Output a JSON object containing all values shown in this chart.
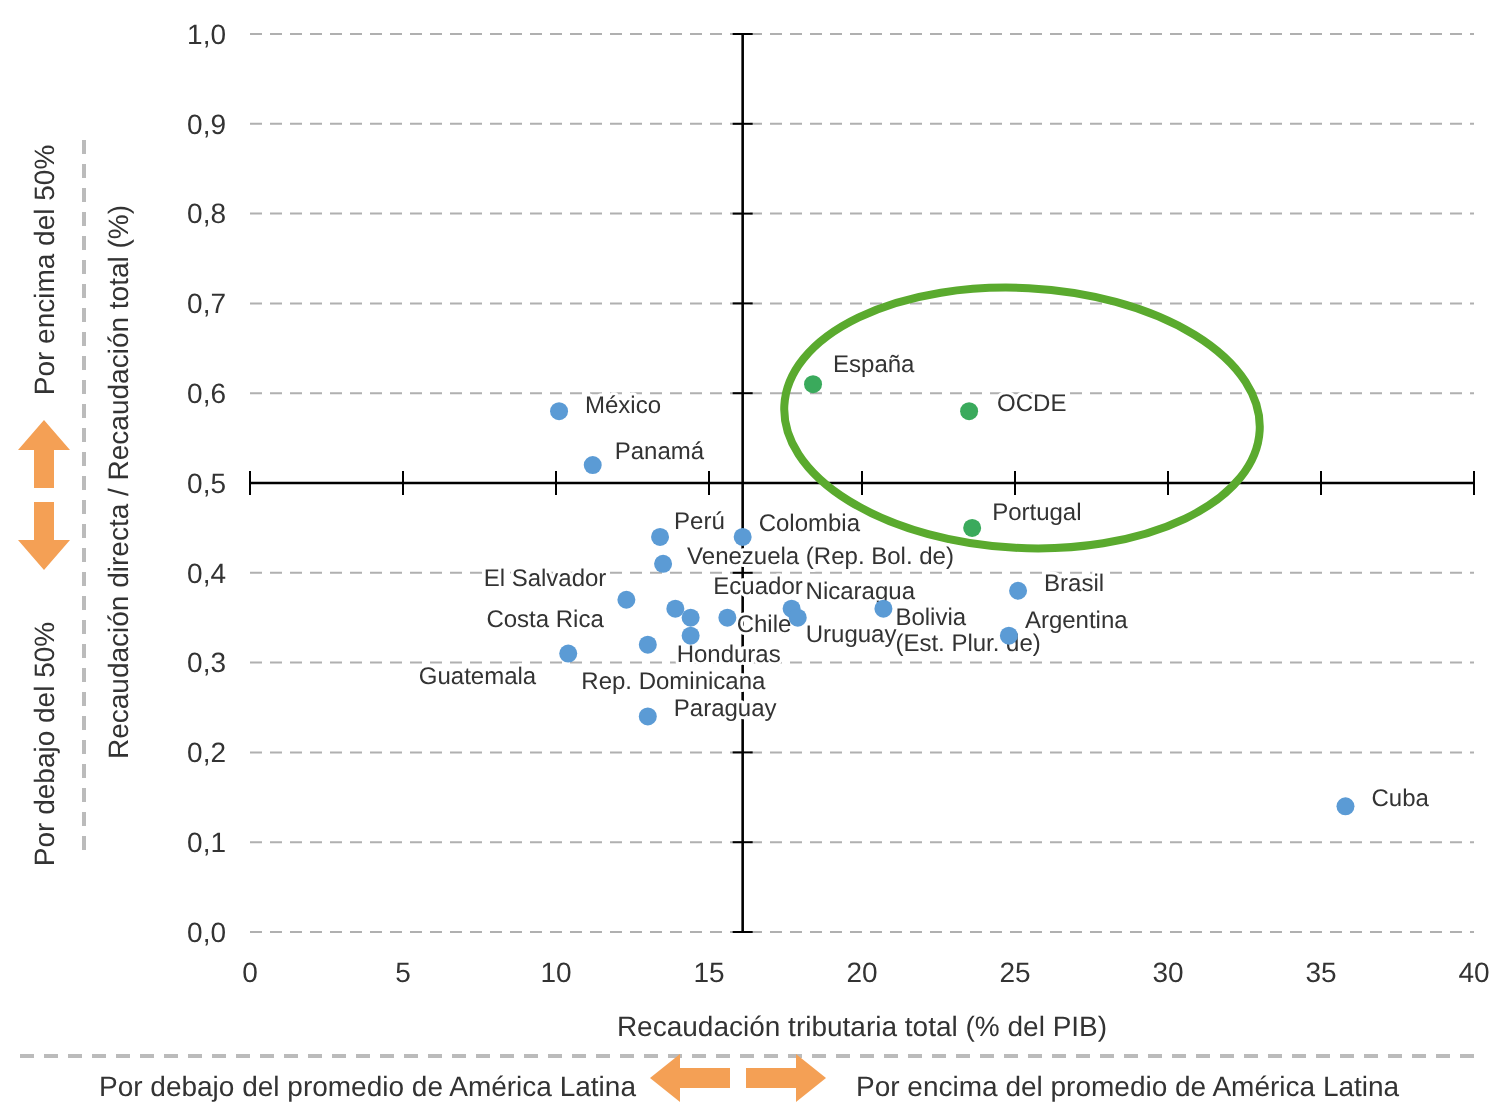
{
  "chart_data": {
    "type": "scatter",
    "xlabel": "Recaudación tributaria total (% del PIB)",
    "ylabel": "Recaudación directa / Recaudación total (%)",
    "xlim": [
      0,
      40
    ],
    "xticks": [
      0,
      5,
      10,
      15,
      20,
      25,
      30,
      35,
      40
    ],
    "ylim": [
      0,
      1
    ],
    "yticks": [
      {
        "value": 0,
        "label": "0,0"
      },
      {
        "value": 0.1,
        "label": "0,1"
      },
      {
        "value": 0.2,
        "label": "0,2"
      },
      {
        "value": 0.3,
        "label": "0,3"
      },
      {
        "value": 0.4,
        "label": "0,4"
      },
      {
        "value": 0.5,
        "label": "0,5"
      },
      {
        "value": 0.6,
        "label": "0,6"
      },
      {
        "value": 0.7,
        "label": "0,7"
      },
      {
        "value": 0.8,
        "label": "0,8"
      },
      {
        "value": 0.9,
        "label": "0,9"
      },
      {
        "value": 1,
        "label": "1,0"
      }
    ],
    "grid": "y",
    "marker": "circle",
    "series": [
      {
        "color": "#5b9bd5",
        "x": [
          10.1,
          11.2,
          13.4,
          16.1,
          13.5,
          12.3,
          13.9,
          14.4,
          14.4,
          15.6,
          13.0,
          10.4,
          13.0,
          17.7,
          17.9,
          20.7,
          25.1,
          24.8,
          35.8
        ],
        "values": [
          0.58,
          0.52,
          0.44,
          0.44,
          0.41,
          0.37,
          0.36,
          0.35,
          0.33,
          0.35,
          0.32,
          0.31,
          0.24,
          0.36,
          0.35,
          0.36,
          0.38,
          0.33,
          0.14
        ]
      },
      {
        "color": "#3aaa5c",
        "x": [
          18.4,
          23.5,
          23.6
        ],
        "values": [
          0.61,
          0.58,
          0.45
        ]
      }
    ],
    "ref_lines": [
      {
        "axis": "x",
        "value": 16.1,
        "color": "#000000"
      },
      {
        "axis": "y",
        "value": 0.5,
        "color": "#000000"
      }
    ],
    "annotations": [
      {
        "text": "México",
        "x": 10.1,
        "y": 0.58
      },
      {
        "text": "Panamá",
        "x": 11.2,
        "y": 0.52
      },
      {
        "text": "Perú",
        "x": 13.4,
        "y": 0.44
      },
      {
        "text": "Colombia",
        "x": 16.1,
        "y": 0.44
      },
      {
        "text": "Venezuela (Rep. Bol. de)",
        "x": 13.5,
        "y": 0.41
      },
      {
        "text": "El Salvador",
        "x": 12.3,
        "y": 0.37
      },
      {
        "text": "Rep. Dominicana",
        "x": 13.9,
        "y": 0.36
      },
      {
        "text": "Chile",
        "x": 14.4,
        "y": 0.35
      },
      {
        "text": "Honduras",
        "x": 14.4,
        "y": 0.33
      },
      {
        "text": "Ecuador",
        "x": 15.6,
        "y": 0.35
      },
      {
        "text": "Costa Rica",
        "x": 13.0,
        "y": 0.32
      },
      {
        "text": "Guatemala",
        "x": 10.4,
        "y": 0.31
      },
      {
        "text": "Paraguay",
        "x": 13.0,
        "y": 0.24
      },
      {
        "text": "Nicaragua",
        "x": 17.7,
        "y": 0.36
      },
      {
        "text": "Uruguay",
        "x": 17.9,
        "y": 0.35
      },
      {
        "text": "Bolivia\n(Est. Plur. de)",
        "x": 20.7,
        "y": 0.36
      },
      {
        "text": "Brasil",
        "x": 25.1,
        "y": 0.38
      },
      {
        "text": "Argentina",
        "x": 24.8,
        "y": 0.33
      },
      {
        "text": "Cuba",
        "x": 35.8,
        "y": 0.14
      },
      {
        "text": "España",
        "x": 18.4,
        "y": 0.61
      },
      {
        "text": "OCDE",
        "x": 23.5,
        "y": 0.58
      },
      {
        "text": "Portugal",
        "x": 23.6,
        "y": 0.45
      },
      "Por encima del 50%",
      "Por debajo del  50%",
      "Por debajo del promedio de América Latina",
      "Por encima del promedio de América Latina"
    ]
  }
}
